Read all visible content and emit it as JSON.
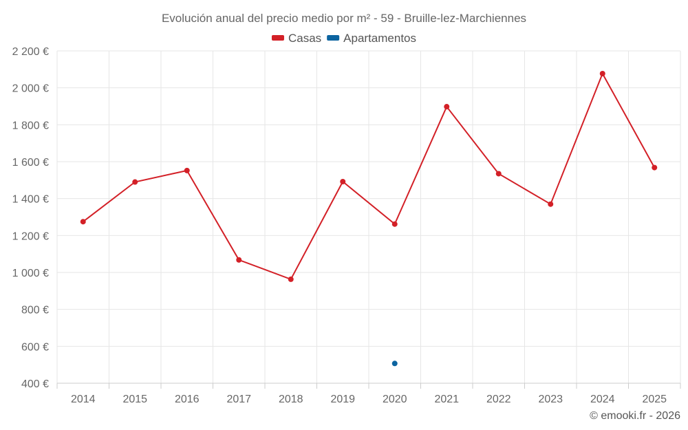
{
  "chart_data": {
    "type": "line",
    "title": "Evolución anual del precio medio por m² - 59 - Bruille-lez-Marchiennes",
    "categories": [
      "2014",
      "2015",
      "2016",
      "2017",
      "2018",
      "2019",
      "2020",
      "2021",
      "2022",
      "2023",
      "2024",
      "2025"
    ],
    "y_tick_labels": [
      "400 €",
      "600 €",
      "800 €",
      "1 000 €",
      "1 200 €",
      "1 400 €",
      "1 600 €",
      "1 800 €",
      "2 000 €",
      "2 200 €"
    ],
    "ylim": [
      400,
      2200
    ],
    "y_tick_step": 200,
    "grid": true,
    "legend_position": "top-center",
    "series": [
      {
        "name": "Casas",
        "color": "#d32027",
        "values": [
          1275,
          1490,
          1552,
          1068,
          963,
          1492,
          1262,
          1898,
          1535,
          1370,
          2077,
          1568
        ]
      },
      {
        "name": "Apartamentos",
        "color": "#0c64a0",
        "values": [
          null,
          null,
          null,
          null,
          null,
          null,
          507,
          null,
          null,
          null,
          null,
          null
        ]
      }
    ]
  },
  "credit": "© emooki.fr - 2026"
}
